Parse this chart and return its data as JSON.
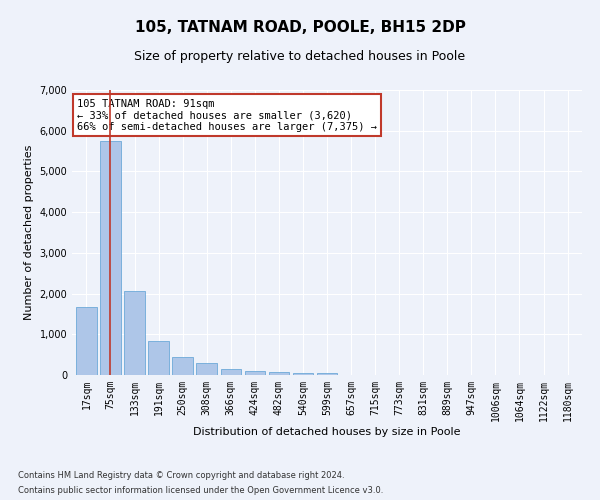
{
  "title": "105, TATNAM ROAD, POOLE, BH15 2DP",
  "subtitle": "Size of property relative to detached houses in Poole",
  "xlabel": "Distribution of detached houses by size in Poole",
  "ylabel": "Number of detached properties",
  "categories": [
    "17sqm",
    "75sqm",
    "133sqm",
    "191sqm",
    "250sqm",
    "308sqm",
    "366sqm",
    "424sqm",
    "482sqm",
    "540sqm",
    "599sqm",
    "657sqm",
    "715sqm",
    "773sqm",
    "831sqm",
    "889sqm",
    "947sqm",
    "1006sqm",
    "1064sqm",
    "1122sqm",
    "1180sqm"
  ],
  "values": [
    1680,
    5750,
    2070,
    830,
    430,
    290,
    150,
    110,
    80,
    50,
    50,
    0,
    0,
    0,
    0,
    0,
    0,
    0,
    0,
    0,
    0
  ],
  "bar_color": "#aec6e8",
  "bar_edge_color": "#5a9fd4",
  "highlight_color": "#c0392b",
  "annotation_title": "105 TATNAM ROAD: 91sqm",
  "annotation_line1": "← 33% of detached houses are smaller (3,620)",
  "annotation_line2": "66% of semi-detached houses are larger (7,375) →",
  "annotation_box_color": "#ffffff",
  "annotation_box_edge": "#c0392b",
  "vline_x_index": 1,
  "ylim": [
    0,
    7000
  ],
  "yticks": [
    0,
    1000,
    2000,
    3000,
    4000,
    5000,
    6000,
    7000
  ],
  "footnote1": "Contains HM Land Registry data © Crown copyright and database right 2024.",
  "footnote2": "Contains public sector information licensed under the Open Government Licence v3.0.",
  "bg_color": "#eef2fa",
  "plot_bg_color": "#eef2fa",
  "grid_color": "#ffffff",
  "title_fontsize": 11,
  "subtitle_fontsize": 9,
  "label_fontsize": 8,
  "tick_fontsize": 7,
  "annot_fontsize": 7.5
}
